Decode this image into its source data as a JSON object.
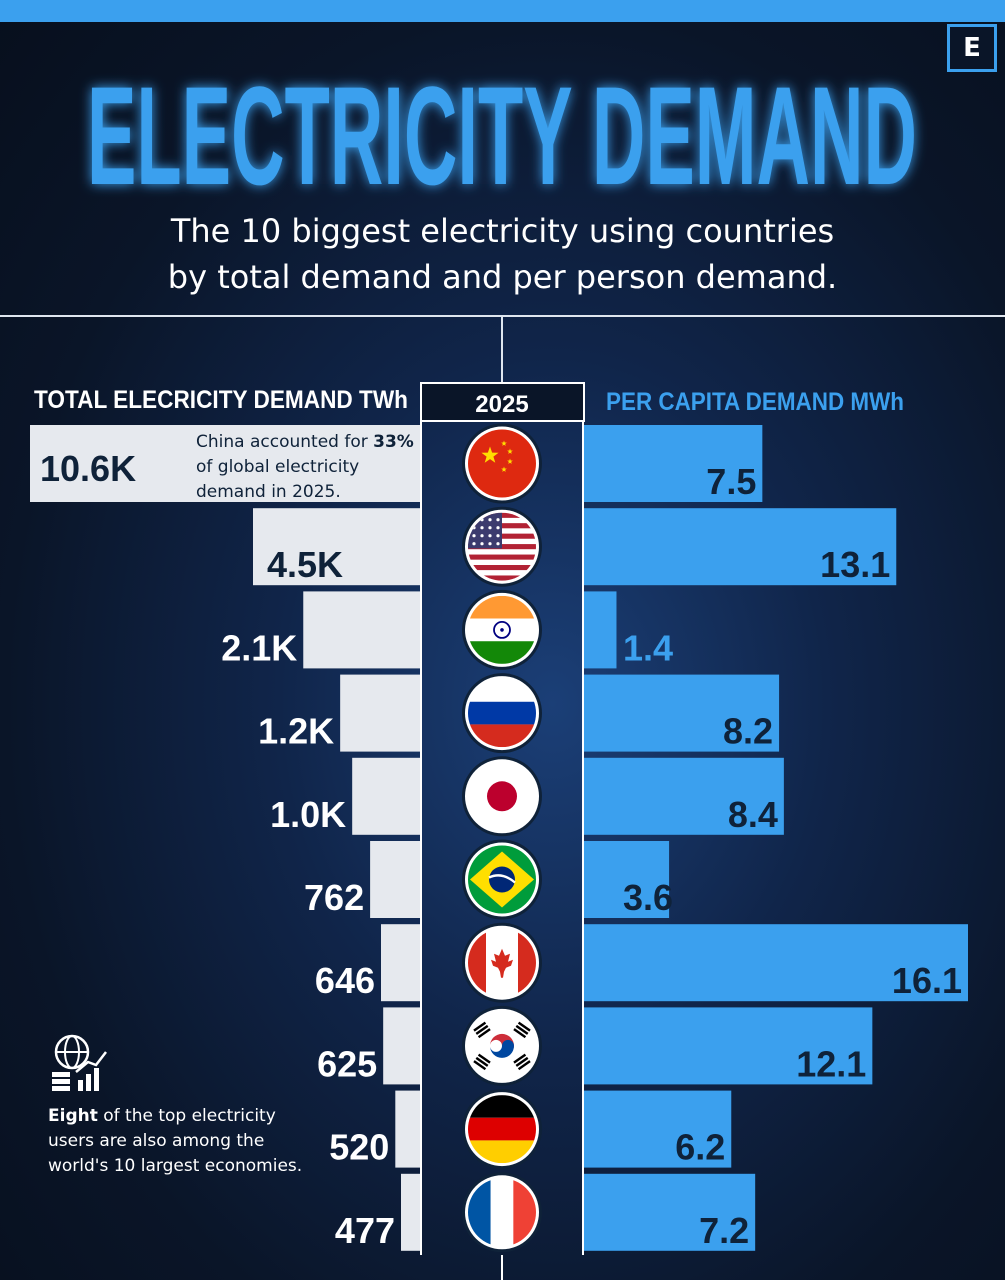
{
  "brand": {
    "logo": "E"
  },
  "title": "ELECTRICITY DEMAND",
  "subtitle_line1": "The 10 biggest electricity using countries",
  "subtitle_line2": "by total demand and per person demand.",
  "note": {
    "bold": "Eight",
    "rest": " of the top electricity users are also among the world's 10 largest economies."
  },
  "colors": {
    "accent": "#3ba0ee",
    "left_bar": "#e6e9ee",
    "value_dark": "#0f2239",
    "background": "#0a1528"
  },
  "chart_data": {
    "type": "bar",
    "title": "",
    "year": "2025",
    "left_label": "TOTAL ELECRICITY DEMAND TWh",
    "right_label": "PER CAPITA DEMAND MWh",
    "annotation": {
      "text_pre": "China accounted for ",
      "bold": "33%",
      "text_post": " of global electricity demand in 2025."
    },
    "categories": [
      "China",
      "United States",
      "India",
      "Russia",
      "Japan",
      "Brazil",
      "Canada",
      "South Korea",
      "Germany",
      "France"
    ],
    "flag_icons": [
      "china-flag-icon",
      "usa-flag-icon",
      "india-flag-icon",
      "russia-flag-icon",
      "japan-flag-icon",
      "brazil-flag-icon",
      "canada-flag-icon",
      "south-korea-flag-icon",
      "germany-flag-icon",
      "france-flag-icon"
    ],
    "series": [
      {
        "name": "TOTAL ELECRICITY DEMAND TWh",
        "values": [
          10600,
          4500,
          2100,
          1200,
          1000,
          762,
          646,
          625,
          520,
          477
        ],
        "labels": [
          "10.6K",
          "4.5K",
          "2.1K",
          "1.2K",
          "1.0K",
          "762",
          "646",
          "625",
          "520",
          "477"
        ]
      },
      {
        "name": "PER CAPITA DEMAND MWh",
        "values": [
          7.5,
          13.1,
          1.4,
          8.2,
          8.4,
          3.6,
          16.1,
          12.1,
          6.2,
          7.2
        ],
        "labels": [
          "7.5",
          "13.1",
          "1.4",
          "8.2",
          "8.4",
          "3.6",
          "16.1",
          "12.1",
          "6.2",
          "7.2"
        ]
      }
    ]
  }
}
